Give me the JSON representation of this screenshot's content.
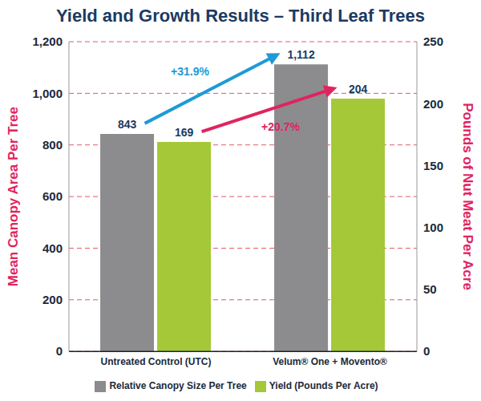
{
  "chart_data": {
    "type": "bar",
    "title": "Yield and Growth Results – Third Leaf Trees",
    "categories": [
      "Untreated Control (UTC)",
      "Velum® One + Movento®"
    ],
    "series": [
      {
        "name": "Relative Canopy Size Per Tree",
        "color": "#8c8c8e",
        "values": [
          843,
          1112
        ],
        "value_labels": [
          "843",
          "1,112"
        ]
      },
      {
        "name": "Yield (Pounds Per Acre)",
        "color": "#a5c838",
        "values": [
          169,
          204
        ],
        "axis": "y2"
      }
    ],
    "y_label": "Mean Canopy Area Per Tree",
    "y2_label": "Pounds of Nut Meat Per Acre",
    "ylim": [
      0,
      1200
    ],
    "yticks": [
      0,
      200,
      400,
      600,
      800,
      {
        "value": 1000,
        "label": "1,000"
      },
      {
        "value": 1200,
        "label": "1,200"
      }
    ],
    "y2lim": [
      0,
      250
    ],
    "y2ticks": [
      0,
      50,
      100,
      150,
      200,
      250
    ],
    "annotations": [
      "+31.9%",
      "+20.7%"
    ],
    "grid": true,
    "legend": "bottom",
    "data_labels": true
  }
}
